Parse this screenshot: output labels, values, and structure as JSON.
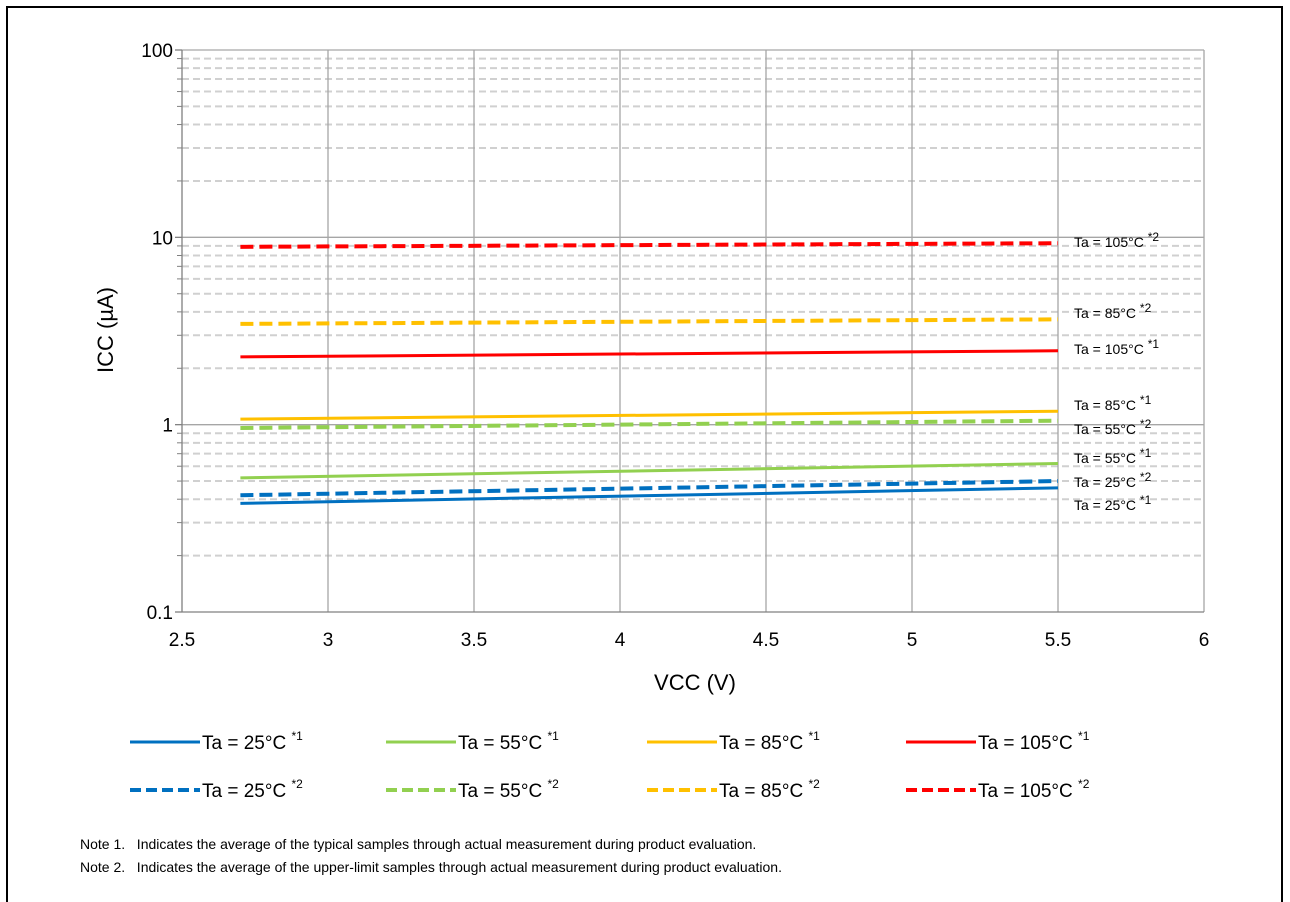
{
  "chart_data": {
    "type": "line",
    "title": "",
    "xlabel": "VCC (V)",
    "ylabel": "ICC (µA)",
    "xlim": [
      2.5,
      6
    ],
    "ylim": [
      0.1,
      100
    ],
    "yscale": "log",
    "xticks": [
      "2.5",
      "3",
      "3.5",
      "4",
      "4.5",
      "5",
      "5.5",
      "6"
    ],
    "yticks": [
      "0.1",
      "1",
      "10",
      "100"
    ],
    "grid": true,
    "legend_position": "bottom",
    "series": [
      {
        "name": "Ta = 25°C",
        "note": "*1",
        "color": "#0070C0",
        "style": "solid",
        "x": [
          2.7,
          5.5
        ],
        "y": [
          0.38,
          0.46
        ]
      },
      {
        "name": "Ta = 55°C",
        "note": "*1",
        "color": "#92D050",
        "style": "solid",
        "x": [
          2.7,
          5.5
        ],
        "y": [
          0.52,
          0.62
        ]
      },
      {
        "name": "Ta = 85°C",
        "note": "*1",
        "color": "#FFC000",
        "style": "solid",
        "x": [
          2.7,
          5.5
        ],
        "y": [
          1.07,
          1.18
        ]
      },
      {
        "name": "Ta = 105°C",
        "note": "*1",
        "color": "#FF0000",
        "style": "solid",
        "x": [
          2.7,
          5.5
        ],
        "y": [
          2.3,
          2.48
        ]
      },
      {
        "name": "Ta = 25°C",
        "note": "*2",
        "color": "#0070C0",
        "style": "dashed",
        "x": [
          2.7,
          5.5
        ],
        "y": [
          0.42,
          0.5
        ]
      },
      {
        "name": "Ta = 55°C",
        "note": "*2",
        "color": "#92D050",
        "style": "dashed",
        "x": [
          2.7,
          5.5
        ],
        "y": [
          0.96,
          1.05
        ]
      },
      {
        "name": "Ta = 85°C",
        "note": "*2",
        "color": "#FFC000",
        "style": "dashed",
        "x": [
          2.7,
          5.5
        ],
        "y": [
          3.45,
          3.65
        ]
      },
      {
        "name": "Ta = 105°C",
        "note": "*2",
        "color": "#FF0000",
        "style": "dashed",
        "x": [
          2.7,
          5.5
        ],
        "y": [
          8.9,
          9.3
        ]
      }
    ],
    "notes": [
      "Note 1.   Indicates the average of the typical samples through actual measurement during product evaluation.",
      "Note 2.   Indicates the average of the upper-limit samples through actual measurement during product evaluation."
    ]
  }
}
